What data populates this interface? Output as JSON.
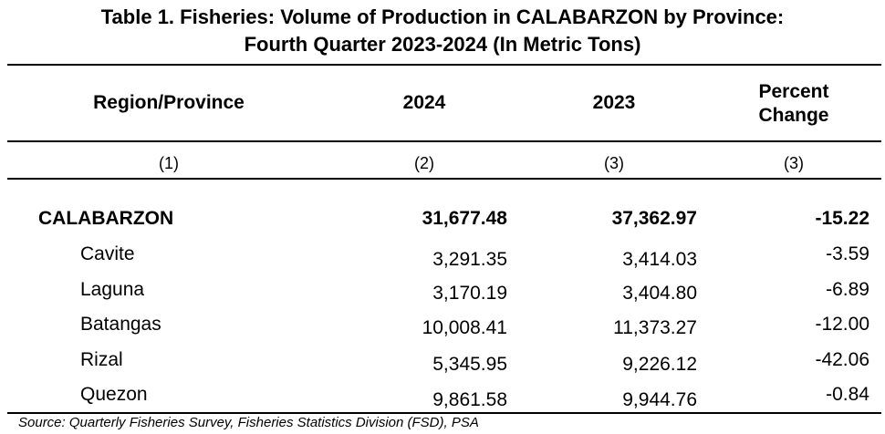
{
  "title": {
    "line1": "Table 1. Fisheries: Volume of Production in CALABARZON by Province:",
    "line2": "Fourth Quarter 2023-2024 (In Metric Tons)"
  },
  "headers": {
    "region": "Region/Province",
    "y2024": "2024",
    "y2023": "2023",
    "pct_line1": "Percent",
    "pct_line2": "Change"
  },
  "column_numbers": [
    "(1)",
    "(2)",
    "(3)",
    "(3)"
  ],
  "rows": [
    {
      "name": "CALABARZON",
      "v2024": "31,677.48",
      "v2023": "37,362.97",
      "pct": "-15.22"
    },
    {
      "name": "Cavite",
      "v2024": "3,291.35",
      "v2023": "3,414.03",
      "pct": "-3.59"
    },
    {
      "name": "Laguna",
      "v2024": "3,170.19",
      "v2023": "3,404.80",
      "pct": "-6.89"
    },
    {
      "name": "Batangas",
      "v2024": "10,008.41",
      "v2023": "11,373.27",
      "pct": "-12.00"
    },
    {
      "name": "Rizal",
      "v2024": "5,345.95",
      "v2023": "9,226.12",
      "pct": "-42.06"
    },
    {
      "name": "Quezon",
      "v2024": "9,861.58",
      "v2023": "9,944.76",
      "pct": "-0.84"
    }
  ],
  "source": "Source: Quarterly Fisheries Survey, Fisheries Statistics Division (FSD), PSA"
}
